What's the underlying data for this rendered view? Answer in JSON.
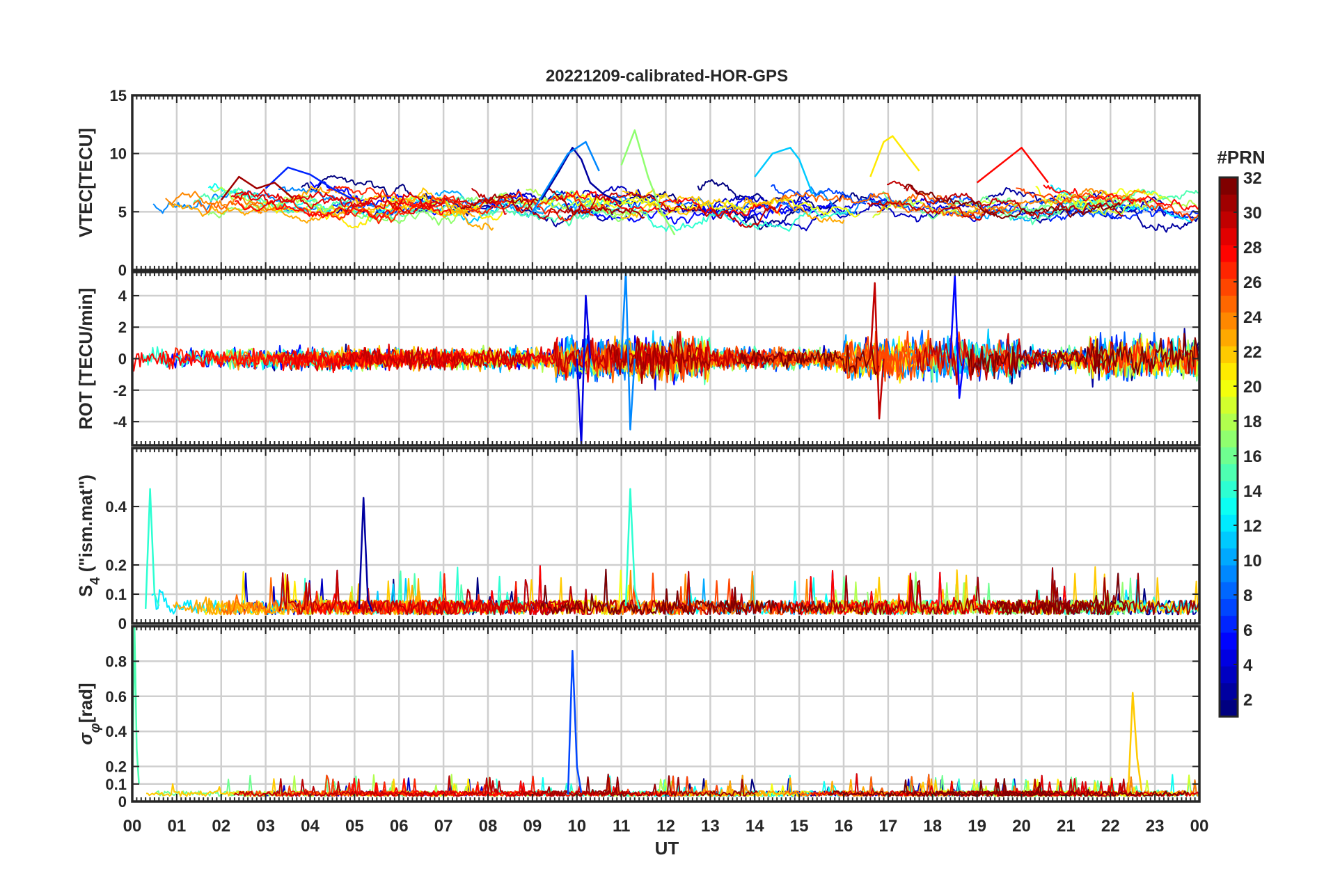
{
  "title": "20221209-calibrated-HOR-GPS",
  "xlabel": "UT",
  "x_tick_labels": [
    "00",
    "01",
    "02",
    "03",
    "04",
    "05",
    "06",
    "07",
    "08",
    "09",
    "10",
    "11",
    "12",
    "13",
    "14",
    "15",
    "16",
    "17",
    "18",
    "19",
    "20",
    "21",
    "22",
    "23",
    "00"
  ],
  "colorbar": {
    "label": "#PRN",
    "min": 1,
    "max": 32,
    "ticks": [
      2,
      4,
      6,
      8,
      10,
      12,
      14,
      16,
      18,
      20,
      22,
      24,
      26,
      28,
      30,
      32
    ],
    "colormap": "jet",
    "colors": [
      "#00008f",
      "#0000df",
      "#0030ff",
      "#0080ff",
      "#00cfff",
      "#20ffdf",
      "#70ff8f",
      "#bfff40",
      "#ffef00",
      "#ffa000",
      "#ff5000",
      "#ef0000",
      "#9f0000",
      "#800000"
    ]
  },
  "panels": [
    {
      "ylabel": "VTEC[TECU]",
      "ylim": [
        0,
        15
      ],
      "yticks": [
        "0",
        "5",
        "10",
        "15"
      ]
    },
    {
      "ylabel": "ROT [TECU/min]",
      "ylim": [
        -5.5,
        5.5
      ],
      "yticks": [
        "-4",
        "-2",
        "0",
        "2",
        "4"
      ]
    },
    {
      "ylabel": "S4 (\"ism.mat\")",
      "ylabel_base": "S",
      "ylabel_sub": "4",
      "ylabel_rest": " (\"ism.mat\")",
      "ylim": [
        0,
        0.6
      ],
      "yticks": [
        "0",
        "0.1",
        "0.2",
        "0.4"
      ]
    },
    {
      "ylabel": "σφ[rad]",
      "ylabel_base": "σ",
      "ylabel_sub": "φ",
      "ylabel_rest": "[rad]",
      "ylim": [
        0,
        1
      ],
      "yticks": [
        "0",
        "0.1",
        "0.2",
        "0.4",
        "0.6",
        "0.8"
      ]
    }
  ],
  "chart_data": [
    {
      "type": "line",
      "title": "20221209-calibrated-HOR-GPS",
      "xlabel": "",
      "ylabel": "VTEC[TECU]",
      "xlim": [
        0,
        24
      ],
      "ylim": [
        0,
        15
      ],
      "grid": true,
      "series": [
        {
          "prn": 2,
          "x": [
            9.2,
            9.6,
            9.9,
            10.1,
            10.3,
            10.6,
            11.0
          ],
          "values": [
            6.0,
            8.5,
            10.5,
            9.5,
            7.5,
            6.5,
            5.8
          ]
        },
        {
          "prn": 6,
          "x": [
            3.0,
            3.5,
            4.0,
            4.5,
            5.0
          ],
          "values": [
            7.0,
            8.8,
            8.2,
            7.0,
            6.0
          ]
        },
        {
          "prn": 9,
          "x": [
            9.0,
            9.4,
            9.8,
            10.2,
            10.5
          ],
          "values": [
            5.0,
            7.5,
            10.0,
            11.0,
            8.5
          ]
        },
        {
          "prn": 11,
          "x": [
            14.0,
            14.4,
            14.8,
            15.0,
            15.3
          ],
          "values": [
            8.0,
            10.0,
            10.5,
            9.5,
            6.5
          ]
        },
        {
          "prn": 17,
          "x": [
            11.0,
            11.3,
            11.6,
            11.9,
            12.2
          ],
          "values": [
            9.0,
            12.0,
            8.0,
            5.0,
            3.0
          ]
        },
        {
          "prn": 21,
          "x": [
            16.6,
            16.9,
            17.1,
            17.4,
            17.7
          ],
          "values": [
            8.0,
            11.0,
            11.5,
            10.0,
            8.5
          ]
        },
        {
          "prn": 28,
          "x": [
            19.0,
            19.5,
            20.0,
            20.3,
            20.6
          ],
          "values": [
            7.5,
            9.0,
            10.5,
            9.0,
            7.5
          ]
        },
        {
          "prn": 31,
          "x": [
            2.0,
            2.4,
            2.8,
            3.2,
            3.6
          ],
          "values": [
            6.0,
            8.0,
            7.0,
            7.5,
            6.2
          ]
        }
      ]
    },
    {
      "type": "line",
      "xlabel": "",
      "ylabel": "ROT [TECU/min]",
      "xlim": [
        0,
        24
      ],
      "ylim": [
        -5.5,
        5.5
      ],
      "grid": true,
      "series": [
        {
          "prn": 4,
          "x": [
            10.0,
            10.1,
            10.2,
            10.3
          ],
          "values": [
            0,
            -5.5,
            4.0,
            0
          ]
        },
        {
          "prn": 9,
          "x": [
            11.0,
            11.1,
            11.2,
            11.3
          ],
          "values": [
            0,
            5.5,
            -4.5,
            0
          ]
        },
        {
          "prn": 30,
          "x": [
            16.6,
            16.7,
            16.8,
            16.9
          ],
          "values": [
            0,
            4.8,
            -3.8,
            0
          ]
        },
        {
          "prn": 5,
          "x": [
            18.4,
            18.5,
            18.6,
            18.7
          ],
          "values": [
            0,
            5.3,
            -2.5,
            0
          ]
        }
      ]
    },
    {
      "type": "line",
      "xlabel": "",
      "ylabel": "S4 (\"ism.mat\")",
      "xlim": [
        0,
        24
      ],
      "ylim": [
        0,
        0.6
      ],
      "grid": true,
      "series": [
        {
          "prn": 14,
          "x": [
            0.3,
            0.4,
            0.5,
            0.6
          ],
          "values": [
            0.05,
            0.46,
            0.1,
            0.06
          ]
        },
        {
          "prn": 2,
          "x": [
            5.1,
            5.2,
            5.3,
            5.4
          ],
          "values": [
            0.05,
            0.43,
            0.08,
            0.04
          ]
        },
        {
          "prn": 14,
          "x": [
            11.1,
            11.2,
            11.3,
            11.4
          ],
          "values": [
            0.06,
            0.46,
            0.12,
            0.05
          ]
        }
      ]
    },
    {
      "type": "line",
      "xlabel": "UT",
      "ylabel": "σφ[rad]",
      "xlim": [
        0,
        24
      ],
      "ylim": [
        0,
        1
      ],
      "grid": true,
      "series": [
        {
          "prn": 7,
          "x": [
            9.8,
            9.9,
            10.0,
            10.1
          ],
          "values": [
            0.04,
            0.86,
            0.2,
            0.05
          ]
        },
        {
          "prn": 22,
          "x": [
            22.4,
            22.5,
            22.6,
            22.7
          ],
          "values": [
            0.05,
            0.62,
            0.25,
            0.06
          ]
        },
        {
          "prn": 15,
          "x": [
            0.0,
            0.05,
            0.1,
            0.15
          ],
          "values": [
            0.05,
            1.0,
            0.3,
            0.1
          ]
        }
      ]
    }
  ]
}
